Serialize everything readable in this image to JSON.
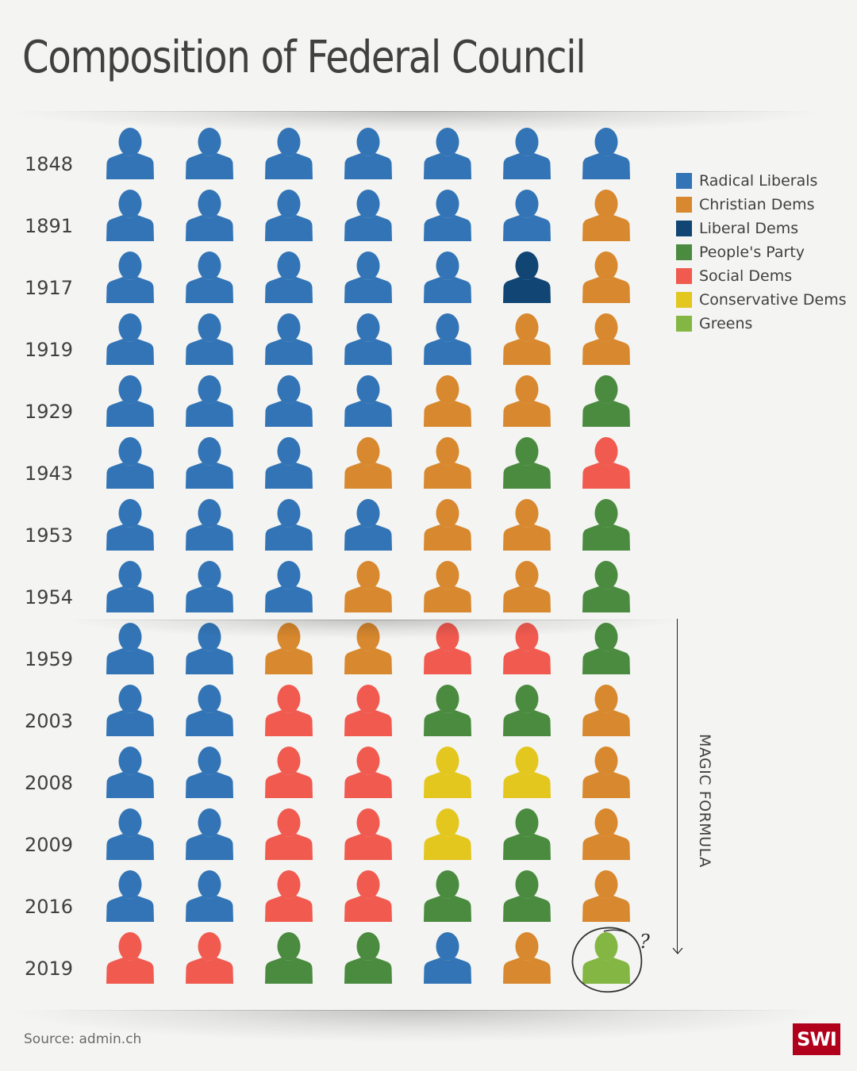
{
  "title": "Composition of Federal Council",
  "chart_data": {
    "type": "pictogram",
    "title": "Composition of Federal Council",
    "parties": [
      {
        "key": "RL",
        "name": "Radical Liberals",
        "color": "#3274b5"
      },
      {
        "key": "CD",
        "name": "Christian Dems",
        "color": "#d8882e"
      },
      {
        "key": "LD",
        "name": "Liberal Dems",
        "color": "#104574"
      },
      {
        "key": "PP",
        "name": "People's Party",
        "color": "#4a8b3f"
      },
      {
        "key": "SD",
        "name": "Social Dems",
        "color": "#f05a4f"
      },
      {
        "key": "CV",
        "name": "Conservative Dems",
        "color": "#e3c71e"
      },
      {
        "key": "GR",
        "name": "Greens",
        "color": "#84b644"
      }
    ],
    "rows": [
      {
        "year": "1848",
        "seats": [
          "RL",
          "RL",
          "RL",
          "RL",
          "RL",
          "RL",
          "RL"
        ]
      },
      {
        "year": "1891",
        "seats": [
          "RL",
          "RL",
          "RL",
          "RL",
          "RL",
          "RL",
          "CD"
        ]
      },
      {
        "year": "1917",
        "seats": [
          "RL",
          "RL",
          "RL",
          "RL",
          "RL",
          "LD",
          "CD"
        ]
      },
      {
        "year": "1919",
        "seats": [
          "RL",
          "RL",
          "RL",
          "RL",
          "RL",
          "CD",
          "CD"
        ]
      },
      {
        "year": "1929",
        "seats": [
          "RL",
          "RL",
          "RL",
          "RL",
          "CD",
          "CD",
          "PP"
        ]
      },
      {
        "year": "1943",
        "seats": [
          "RL",
          "RL",
          "RL",
          "CD",
          "CD",
          "PP",
          "SD"
        ]
      },
      {
        "year": "1953",
        "seats": [
          "RL",
          "RL",
          "RL",
          "RL",
          "CD",
          "CD",
          "PP"
        ]
      },
      {
        "year": "1954",
        "seats": [
          "RL",
          "RL",
          "RL",
          "CD",
          "CD",
          "CD",
          "PP"
        ]
      },
      {
        "year": "1959",
        "seats": [
          "RL",
          "RL",
          "CD",
          "CD",
          "SD",
          "SD",
          "PP"
        ]
      },
      {
        "year": "2003",
        "seats": [
          "RL",
          "RL",
          "SD",
          "SD",
          "PP",
          "PP",
          "CD"
        ]
      },
      {
        "year": "2008",
        "seats": [
          "RL",
          "RL",
          "SD",
          "SD",
          "CV",
          "CV",
          "CD"
        ]
      },
      {
        "year": "2009",
        "seats": [
          "RL",
          "RL",
          "SD",
          "SD",
          "CV",
          "PP",
          "CD"
        ]
      },
      {
        "year": "2016",
        "seats": [
          "RL",
          "RL",
          "SD",
          "SD",
          "PP",
          "PP",
          "CD"
        ]
      },
      {
        "year": "2019",
        "seats": [
          "SD",
          "SD",
          "PP",
          "PP",
          "RL",
          "CD",
          "GR"
        ]
      }
    ],
    "magic_formula": {
      "label": "MAGIC FORMULA",
      "from_year": "1959",
      "to_year": "2019"
    },
    "annotation": {
      "year": "2019",
      "seat_index": 6,
      "text": "?"
    }
  },
  "footer": {
    "source": "Source: admin.ch",
    "logo": "SWI"
  }
}
